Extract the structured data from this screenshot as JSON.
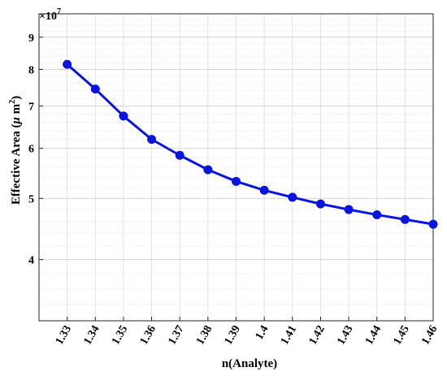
{
  "chart_data": {
    "type": "line",
    "xlabel": "n(Analyte)",
    "ylabel_main": "Effective Area (",
    "ylabel_mu": "μ",
    "ylabel_m": " m",
    "ylabel_sup": "2",
    "ylabel_close": ")",
    "y_exponent_base": "×10",
    "y_exponent_power": "7",
    "yscale": "log",
    "xlim": [
      1.32,
      1.46
    ],
    "ylim": [
      3.2,
      9.8
    ],
    "grid": true,
    "x_ticks": [
      "1.33",
      "1.34",
      "1.35",
      "1.36",
      "1.37",
      "1.38",
      "1.39",
      "1.4",
      "1.41",
      "1.42",
      "1.43",
      "1.44",
      "1.45",
      "1.46"
    ],
    "y_ticks": [
      "4",
      "5",
      "6",
      "7",
      "8",
      "9"
    ],
    "series": [
      {
        "color": "#0a14e0",
        "x": [
          1.33,
          1.34,
          1.35,
          1.36,
          1.37,
          1.38,
          1.39,
          1.4,
          1.41,
          1.42,
          1.43,
          1.44,
          1.45,
          1.46
        ],
        "values": [
          8.15,
          7.45,
          6.75,
          6.2,
          5.85,
          5.55,
          5.32,
          5.15,
          5.02,
          4.9,
          4.8,
          4.71,
          4.63,
          4.55
        ]
      }
    ]
  }
}
